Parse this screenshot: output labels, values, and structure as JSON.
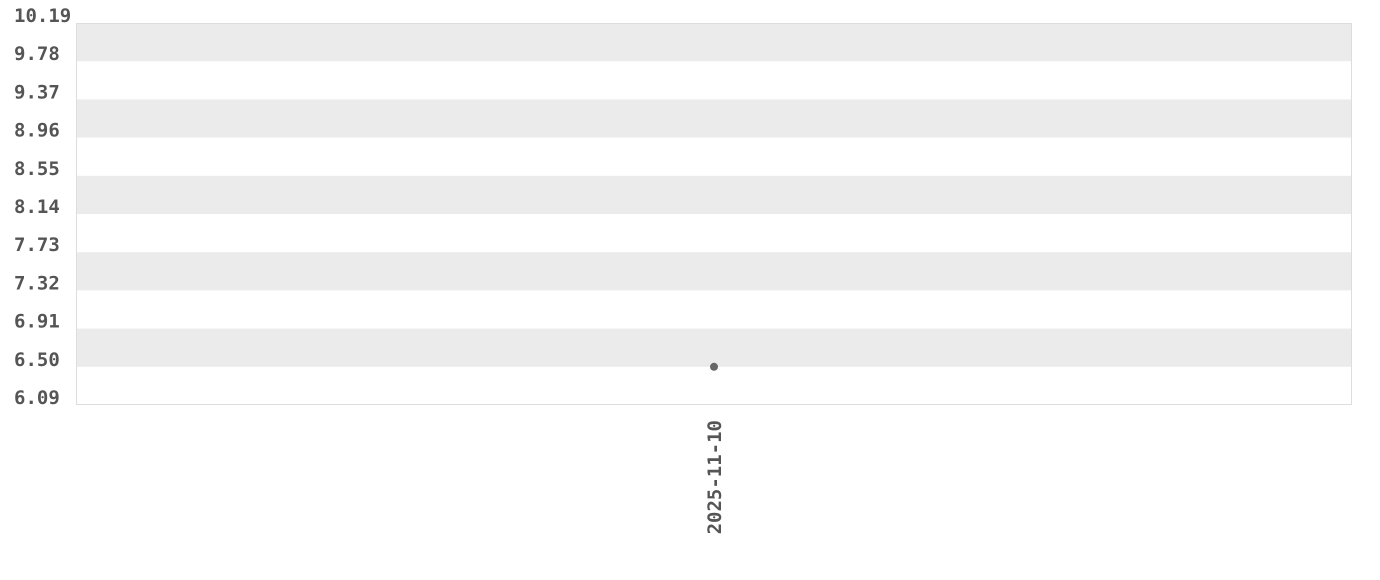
{
  "chart_data": {
    "type": "scatter",
    "title": "",
    "xlabel": "",
    "ylabel": "",
    "x_tick_labels": [
      "2025-11-10"
    ],
    "y_tick_labels": [
      "10.19",
      "9.78",
      "9.37",
      "8.96",
      "8.55",
      "8.14",
      "7.73",
      "7.32",
      "6.91",
      "6.50",
      "6.09"
    ],
    "ylim": [
      6.09,
      10.19
    ],
    "grid": "alternating horizontal bands",
    "legend": "none",
    "series": [
      {
        "points": [
          {
            "x": "2025-11-10",
            "y": 6.5
          }
        ]
      }
    ],
    "colors": {
      "band": "#ebebeb",
      "point": "#666666",
      "border": "#dddddd",
      "text": "#555555"
    }
  }
}
